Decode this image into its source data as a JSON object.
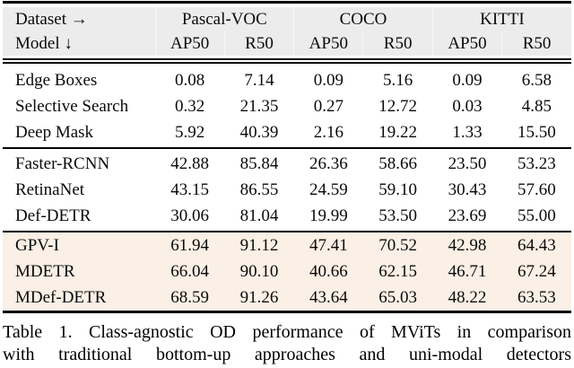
{
  "header": {
    "dataset_label": "Dataset →",
    "model_label": "Model ↓",
    "datasets": [
      "Pascal-VOC",
      "COCO",
      "KITTI"
    ],
    "metrics": [
      "AP50",
      "R50",
      "AP50",
      "R50",
      "AP50",
      "R50"
    ]
  },
  "groups": [
    {
      "rows": [
        {
          "model": "Edge Boxes",
          "values": [
            "0.08",
            "7.14",
            "0.09",
            "5.16",
            "0.09",
            "6.58"
          ]
        },
        {
          "model": "Selective Search",
          "values": [
            "0.32",
            "21.35",
            "0.27",
            "12.72",
            "0.03",
            "4.85"
          ]
        },
        {
          "model": "Deep Mask",
          "values": [
            "5.92",
            "40.39",
            "2.16",
            "19.22",
            "1.33",
            "15.50"
          ]
        }
      ]
    },
    {
      "rows": [
        {
          "model": "Faster-RCNN",
          "values": [
            "42.88",
            "85.84",
            "26.36",
            "58.66",
            "23.50",
            "53.23"
          ]
        },
        {
          "model": "RetinaNet",
          "values": [
            "43.15",
            "86.55",
            "24.59",
            "59.10",
            "30.43",
            "57.60"
          ]
        },
        {
          "model": "Def-DETR",
          "values": [
            "30.06",
            "81.04",
            "19.99",
            "53.50",
            "23.69",
            "55.00"
          ]
        }
      ]
    },
    {
      "rows": [
        {
          "model": "GPV-I",
          "values": [
            "61.94",
            "91.12",
            "47.41",
            "70.52",
            "42.98",
            "64.43"
          ]
        },
        {
          "model": "MDETR",
          "values": [
            "66.04",
            "90.10",
            "40.66",
            "62.15",
            "46.71",
            "67.24"
          ]
        },
        {
          "model": "MDef-DETR",
          "values": [
            "68.59",
            "91.26",
            "43.64",
            "65.03",
            "48.22",
            "63.53"
          ]
        }
      ]
    }
  ],
  "caption": {
    "line1": "Table 1. Class-agnostic OD performance of MViTs in comparison",
    "line2": "with traditional bottom-up approaches and uni-modal detectors"
  },
  "colors": {
    "header_bg": "#ececec",
    "highlight_bg": "#fbf0e5",
    "rule": "#000000",
    "text": "#0a0a0a"
  }
}
